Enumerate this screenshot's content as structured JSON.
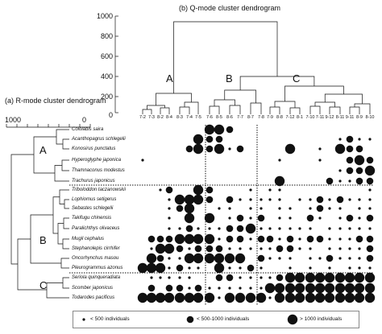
{
  "titles": {
    "q_mode": "(b) Q-mode cluster dendrogram",
    "r_mode": "(a) R-mode cluster dendrogram"
  },
  "q_axis_ticks": [
    "1000",
    "800",
    "600",
    "400",
    "200",
    "0"
  ],
  "r_axis_ticks": [
    "1000",
    "0"
  ],
  "q_cluster_labels": [
    "A",
    "B",
    "C"
  ],
  "r_cluster_labels": [
    "A",
    "B",
    "C"
  ],
  "stations": [
    "7-2",
    "7-3",
    "8-2",
    "8-4",
    "8-3",
    "7-4",
    "7-5",
    "7-6",
    "8-5",
    "8-6",
    "7-7",
    "8-7",
    "7-8",
    "7-9",
    "8-8",
    "7-12",
    "8-1",
    "7-10",
    "7-11",
    "9-12",
    "8-11",
    "9-11",
    "8-9",
    "8-10"
  ],
  "species": [
    "Cololabis saira",
    "Acanthopagrus schlegelii",
    "Konosirus punctatus",
    "Hyperoglyphe japonica",
    "Thamnaconus modestus",
    "Trachurus japonicus",
    "Triboloddon taczanowskii",
    "Lophiomus setigerus",
    "Sebastes schlegelii",
    "Takifugu chinensis",
    "Paralichthys olivaceus",
    "Mugil cephalus",
    "Stephanolepis cirrhifer",
    "Oncorhynchus masou",
    "Pleurogrammus azonus",
    "Seriola quinqueradiata",
    "Scomber japonicus",
    "Todarodes pacificus"
  ],
  "legend": [
    {
      "size": 1,
      "label": "< 500 individuals"
    },
    {
      "size": 2,
      "label": "< 500-1000 individuals"
    },
    {
      "size": 3,
      "label": "> 1000 individuals"
    }
  ],
  "abundance_matrix": [
    "000000033200000000000000",
    "000000322000000000001211",
    "000002323120000300103220",
    "100000000000001000100232",
    "000000000000000000001223",
    "000000000000003000021122",
    "001200320001011000000001",
    "000133320211111011212111",
    "000123001101101101211011",
    "000103030121201102101212",
    "000112111223111111011111",
    "022233331221221212211122",
    "013321222111112211011112",
    "032113333330211101121112",
    "333121103112100101010111",
    "011111002211112333333333",
    "020221211111133333333333",
    "333333331333313333333333"
  ],
  "colors": {
    "ink": "#111111",
    "frame": "#888888"
  }
}
